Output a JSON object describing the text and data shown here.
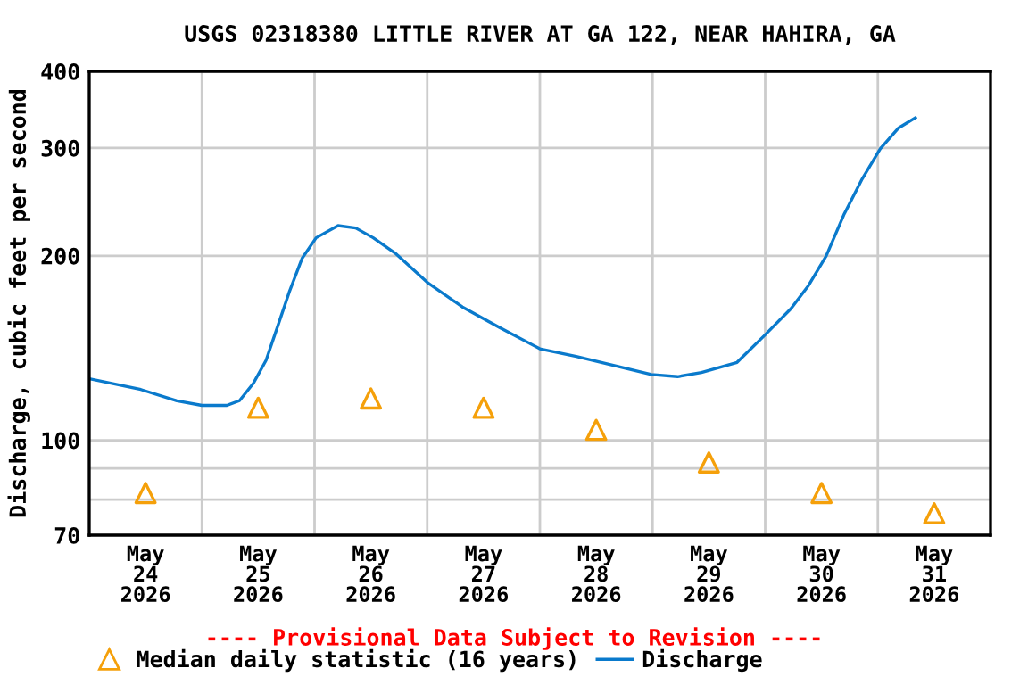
{
  "chart_data": {
    "type": "line",
    "title": "USGS 02318380 LITTLE RIVER AT GA 122, NEAR HAHIRA, GA",
    "ylabel": "Discharge, cubic feet per second",
    "annotations": [
      "---- Provisional Data Subject to Revision ----"
    ],
    "log": "y",
    "grid": true,
    "legend": "bottom",
    "xlim": [
      "2026-05-24T00:00",
      "2026-06-01T00:00"
    ],
    "xticks": [
      {
        "value": "2026-05-24T12:00",
        "label": "May\n24\n2026"
      },
      {
        "value": "2026-05-25T12:00",
        "label": "May\n25\n2026"
      },
      {
        "value": "2026-05-26T12:00",
        "label": "May\n26\n2026"
      },
      {
        "value": "2026-05-27T12:00",
        "label": "May\n27\n2026"
      },
      {
        "value": "2026-05-28T12:00",
        "label": "May\n28\n2026"
      },
      {
        "value": "2026-05-29T12:00",
        "label": "May\n29\n2026"
      },
      {
        "value": "2026-05-30T12:00",
        "label": "May\n30\n2026"
      },
      {
        "value": "2026-05-31T12:00",
        "label": "May\n31\n2026"
      },
      {
        "value": "2026-05-25T00:00",
        "label": null
      },
      {
        "value": "2026-05-26T00:00",
        "label": null
      },
      {
        "value": "2026-05-27T00:00",
        "label": null
      },
      {
        "value": "2026-05-28T00:00",
        "label": null
      },
      {
        "value": "2026-05-29T00:00",
        "label": null
      },
      {
        "value": "2026-05-30T00:00",
        "label": null
      },
      {
        "value": "2026-05-31T00:00",
        "label": null
      }
    ],
    "ylim": [
      70,
      400
    ],
    "yticks": [
      70,
      {
        "value": 80,
        "label": null
      },
      {
        "value": 90,
        "label": null
      },
      100,
      200,
      300,
      400
    ],
    "series": [
      {
        "name": "Median daily statistic (16 years)",
        "type": "scatter",
        "marker": "triangle",
        "color": "#f5a00a",
        "x": [
          "2026-05-24T12:00",
          "2026-05-25T12:00",
          "2026-05-26T12:00",
          "2026-05-27T12:00",
          "2026-05-28T12:00",
          "2026-05-29T12:00",
          "2026-05-30T12:00",
          "2026-05-31T12:00"
        ],
        "values": [
          82,
          113,
          117,
          113,
          104,
          92,
          82,
          76
        ]
      },
      {
        "name": "Discharge",
        "color": "#0a7acc",
        "x": [
          "2026-05-24T00:00",
          "2026-05-24T11:00",
          "2026-05-24T18:40",
          "2026-05-25T00:00",
          "2026-05-25T05:20",
          "2026-05-25T08:00",
          "2026-05-25T11:00",
          "2026-05-25T13:40",
          "2026-05-25T16:20",
          "2026-05-25T18:40",
          "2026-05-25T21:20",
          "2026-05-26T00:20",
          "2026-05-26T05:00",
          "2026-05-26T08:45",
          "2026-05-26T12:30",
          "2026-05-26T17:10",
          "2026-05-27T00:00",
          "2026-05-27T07:30",
          "2026-05-27T15:15",
          "2026-05-27T22:30",
          "2026-05-28T00:00",
          "2026-05-28T07:45",
          "2026-05-28T16:40",
          "2026-05-28T23:45",
          "2026-05-29T05:20",
          "2026-05-29T10:25",
          "2026-05-29T18:00",
          "2026-05-29T23:45",
          "2026-05-30T05:30",
          "2026-05-30T09:15",
          "2026-05-30T13:00",
          "2026-05-30T16:50",
          "2026-05-30T20:40",
          "2026-05-31T00:30",
          "2026-05-31T04:20",
          "2026-05-31T08:00"
        ],
        "values": [
          126,
          121,
          116,
          114,
          114,
          116,
          124,
          135,
          155,
          175,
          198,
          214,
          224,
          222,
          214,
          202,
          181,
          165,
          153,
          143,
          141,
          137,
          132,
          128,
          127,
          129,
          134,
          148,
          164,
          179,
          200,
          234,
          267,
          299,
          323,
          336
        ]
      }
    ]
  }
}
